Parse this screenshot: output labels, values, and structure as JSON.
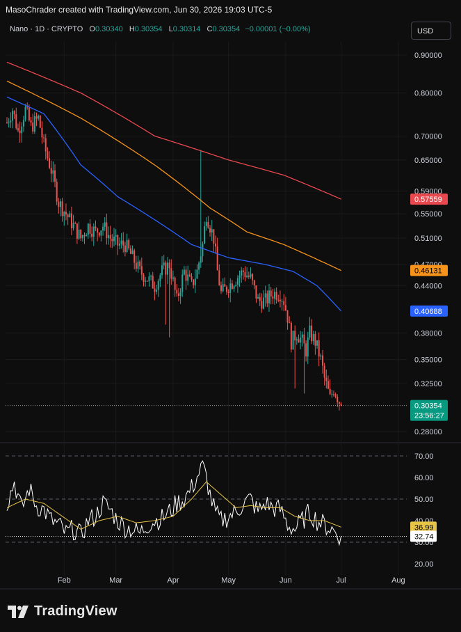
{
  "header": {
    "text": "MasoChrader created with TradingView.com, Jun 30, 2026 19:03 UTC-5"
  },
  "legend": {
    "symbol": "Nano · 1D · CRYPTO",
    "o_label": "O",
    "o": "0.30340",
    "h_label": "H",
    "h": "0.30354",
    "l_label": "L",
    "l": "0.30314",
    "c_label": "C",
    "c": "0.30354",
    "change": "−0.00001 (−0.00%)"
  },
  "currency_button": "USD",
  "footer": {
    "brand": "TradingView"
  },
  "colors": {
    "background": "#0e0e0e",
    "grid": "#1e1e1e",
    "up": "#26a69a",
    "down": "#ef5350",
    "ma_red": "#e9484f",
    "ma_orange": "#f7931a",
    "ma_blue": "#2962ff",
    "rsi": "#ffffff",
    "rsi_ma": "#e8c547",
    "last_price": "#089981"
  },
  "chart_data": [
    {
      "type": "candlestick",
      "title": "Nano · 1D · CRYPTO",
      "y_scale": "log",
      "y_ticks": [
        "0.90000",
        "0.80000",
        "0.70000",
        "0.65000",
        "0.59000",
        "0.55000",
        "0.51000",
        "0.47000",
        "0.44000",
        "0.38000",
        "0.35000",
        "0.32500",
        "0.28000"
      ],
      "y_tick_values": [
        0.9,
        0.8,
        0.7,
        0.65,
        0.59,
        0.55,
        0.51,
        0.47,
        0.44,
        0.38,
        0.35,
        0.325,
        0.28
      ],
      "x_ticks": [
        "Feb",
        "Mar",
        "Apr",
        "May",
        "Jun",
        "Jul",
        "Aug"
      ],
      "x_tick_days": [
        31,
        59,
        90,
        120,
        151,
        181,
        212
      ],
      "price_anchors": [
        [
          0,
          0.73
        ],
        [
          3,
          0.76
        ],
        [
          6,
          0.71
        ],
        [
          10,
          0.76
        ],
        [
          13,
          0.72
        ],
        [
          17,
          0.74
        ],
        [
          20,
          0.68
        ],
        [
          24,
          0.63
        ],
        [
          28,
          0.57
        ],
        [
          32,
          0.55
        ],
        [
          36,
          0.53
        ],
        [
          40,
          0.51
        ],
        [
          44,
          0.53
        ],
        [
          48,
          0.52
        ],
        [
          52,
          0.53
        ],
        [
          56,
          0.51
        ],
        [
          60,
          0.5
        ],
        [
          64,
          0.5
        ],
        [
          68,
          0.48
        ],
        [
          72,
          0.46
        ],
        [
          76,
          0.45
        ],
        [
          80,
          0.44
        ],
        [
          84,
          0.46
        ],
        [
          88,
          0.47
        ],
        [
          92,
          0.42
        ],
        [
          96,
          0.46
        ],
        [
          100,
          0.44
        ],
        [
          103,
          0.46
        ],
        [
          106,
          0.5
        ],
        [
          108,
          0.55
        ],
        [
          110,
          0.53
        ],
        [
          112,
          0.51
        ],
        [
          114,
          0.46
        ],
        [
          116,
          0.43
        ],
        [
          120,
          0.44
        ],
        [
          124,
          0.45
        ],
        [
          128,
          0.46
        ],
        [
          132,
          0.45
        ],
        [
          136,
          0.42
        ],
        [
          140,
          0.42
        ],
        [
          144,
          0.43
        ],
        [
          148,
          0.43
        ],
        [
          150,
          0.42
        ],
        [
          152,
          0.4
        ],
        [
          154,
          0.37
        ],
        [
          157,
          0.38
        ],
        [
          160,
          0.37
        ],
        [
          162,
          0.36
        ],
        [
          164,
          0.38
        ],
        [
          167,
          0.37
        ],
        [
          170,
          0.35
        ],
        [
          172,
          0.33
        ],
        [
          175,
          0.31
        ],
        [
          177,
          0.32
        ],
        [
          181,
          0.3035
        ]
      ],
      "moving_averages": [
        {
          "name": "MA red",
          "color": "#e9484f",
          "points": [
            [
              0,
              0.88
            ],
            [
              40,
              0.8
            ],
            [
              80,
              0.7
            ],
            [
              120,
              0.65
            ],
            [
              150,
              0.62
            ],
            [
              181,
              0.5756
            ]
          ],
          "last": "0.57559"
        },
        {
          "name": "MA orange",
          "color": "#f7931a",
          "points": [
            [
              0,
              0.83
            ],
            [
              40,
              0.74
            ],
            [
              80,
              0.64
            ],
            [
              110,
              0.56
            ],
            [
              130,
              0.52
            ],
            [
              150,
              0.5
            ],
            [
              181,
              0.4613
            ]
          ],
          "last": "0.46131"
        },
        {
          "name": "MA blue",
          "color": "#2962ff",
          "points": [
            [
              0,
              0.79
            ],
            [
              20,
              0.75
            ],
            [
              40,
              0.64
            ],
            [
              60,
              0.58
            ],
            [
              80,
              0.54
            ],
            [
              100,
              0.5
            ],
            [
              120,
              0.48
            ],
            [
              140,
              0.47
            ],
            [
              155,
              0.46
            ],
            [
              168,
              0.44
            ],
            [
              181,
              0.4069
            ]
          ],
          "last": "0.40688"
        }
      ],
      "last_price": "0.30354",
      "countdown": "23:56:27"
    },
    {
      "type": "line",
      "title": "RSI",
      "y_ticks": [
        "70.00",
        "60.00",
        "50.00",
        "40.00",
        "30.00",
        "20.00"
      ],
      "y_tick_values": [
        70,
        60,
        50,
        40,
        30,
        20
      ],
      "bands": [
        70,
        50,
        30
      ],
      "series": [
        {
          "name": "RSI",
          "color": "#ffffff",
          "points": [
            [
              0,
              48
            ],
            [
              4,
              58
            ],
            [
              8,
              45
            ],
            [
              12,
              55
            ],
            [
              16,
              47
            ],
            [
              20,
              45
            ],
            [
              24,
              40
            ],
            [
              28,
              38
            ],
            [
              32,
              34
            ],
            [
              36,
              36
            ],
            [
              40,
              33
            ],
            [
              44,
              40
            ],
            [
              48,
              42
            ],
            [
              52,
              48
            ],
            [
              56,
              45
            ],
            [
              60,
              40
            ],
            [
              64,
              37
            ],
            [
              68,
              36
            ],
            [
              72,
              34
            ],
            [
              76,
              38
            ],
            [
              80,
              40
            ],
            [
              84,
              41
            ],
            [
              88,
              44
            ],
            [
              92,
              48
            ],
            [
              96,
              50
            ],
            [
              100,
              55
            ],
            [
              104,
              62
            ],
            [
              106,
              65
            ],
            [
              108,
              60
            ],
            [
              110,
              52
            ],
            [
              113,
              43
            ],
            [
              116,
              40
            ],
            [
              120,
              42
            ],
            [
              124,
              44
            ],
            [
              128,
              48
            ],
            [
              132,
              50
            ],
            [
              136,
              44
            ],
            [
              140,
              48
            ],
            [
              144,
              46
            ],
            [
              148,
              45
            ],
            [
              150,
              42
            ],
            [
              152,
              38
            ],
            [
              156,
              36
            ],
            [
              160,
              40
            ],
            [
              164,
              44
            ],
            [
              168,
              40
            ],
            [
              172,
              38
            ],
            [
              176,
              36
            ],
            [
              181,
              32.74
            ]
          ],
          "last": "32.74"
        },
        {
          "name": "RSI MA",
          "color": "#e8c547",
          "points": [
            [
              0,
              46
            ],
            [
              10,
              50
            ],
            [
              20,
              48
            ],
            [
              30,
              42
            ],
            [
              40,
              36
            ],
            [
              50,
              40
            ],
            [
              60,
              42
            ],
            [
              70,
              39
            ],
            [
              80,
              40
            ],
            [
              90,
              42
            ],
            [
              100,
              50
            ],
            [
              108,
              58
            ],
            [
              116,
              52
            ],
            [
              124,
              46
            ],
            [
              132,
              47
            ],
            [
              140,
              46
            ],
            [
              148,
              46
            ],
            [
              156,
              42
            ],
            [
              164,
              40
            ],
            [
              172,
              40
            ],
            [
              181,
              36.99
            ]
          ],
          "last": "36.99"
        }
      ]
    }
  ]
}
